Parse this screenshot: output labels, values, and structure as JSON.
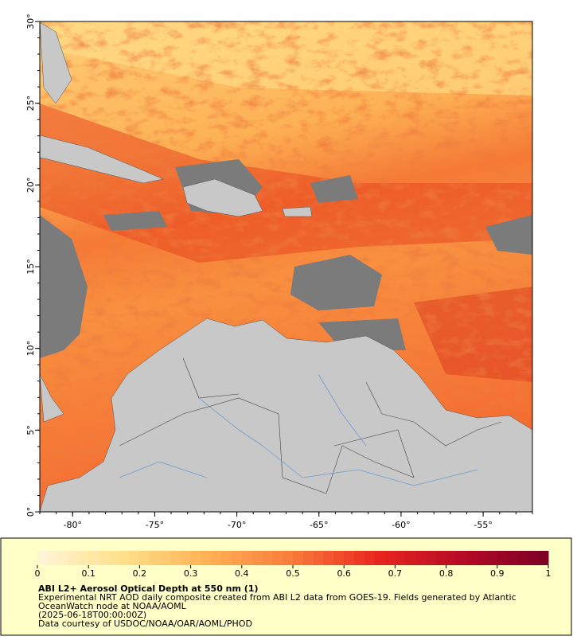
{
  "map": {
    "xlim": [
      -82,
      -52
    ],
    "ylim": [
      0,
      30
    ],
    "xticks": [
      {
        "value": -80,
        "label": "-80°"
      },
      {
        "value": -75,
        "label": "-75°"
      },
      {
        "value": -70,
        "label": "-70°"
      },
      {
        "value": -65,
        "label": "-65°"
      },
      {
        "value": -60,
        "label": "-60°"
      },
      {
        "value": -55,
        "label": "-55°"
      }
    ],
    "yticks": [
      {
        "value": 0,
        "label": "0°"
      },
      {
        "value": 5,
        "label": "5°"
      },
      {
        "value": 10,
        "label": "10°"
      },
      {
        "value": 15,
        "label": "15°"
      },
      {
        "value": 20,
        "label": "20°"
      },
      {
        "value": 25,
        "label": "25°"
      },
      {
        "value": 30,
        "label": "30°"
      }
    ]
  },
  "colorbar": {
    "range": [
      0,
      1
    ],
    "ticks": [
      0,
      0.1,
      0.2,
      0.3,
      0.4,
      0.5,
      0.6,
      0.7,
      0.8,
      0.9,
      1
    ],
    "colors": [
      "#fff5d8",
      "#ffe08a",
      "#fdb155",
      "#f97a3a",
      "#e8261f",
      "#b50a26",
      "#7a0026"
    ]
  },
  "caption": {
    "title": "ABI L2+ Aerosol Optical Depth at 550 nm (1)",
    "lines": [
      "Experimental NRT AOD daily composite created from ABI L2 data from GOES-19. Fields generated by Atlantic",
      "OceanWatch node at NOAA/AOML",
      "(2025-06-18T00:00:00Z)",
      "Data courtesy of USDOC/NOAA/OAR/AOML/PHOD"
    ]
  }
}
